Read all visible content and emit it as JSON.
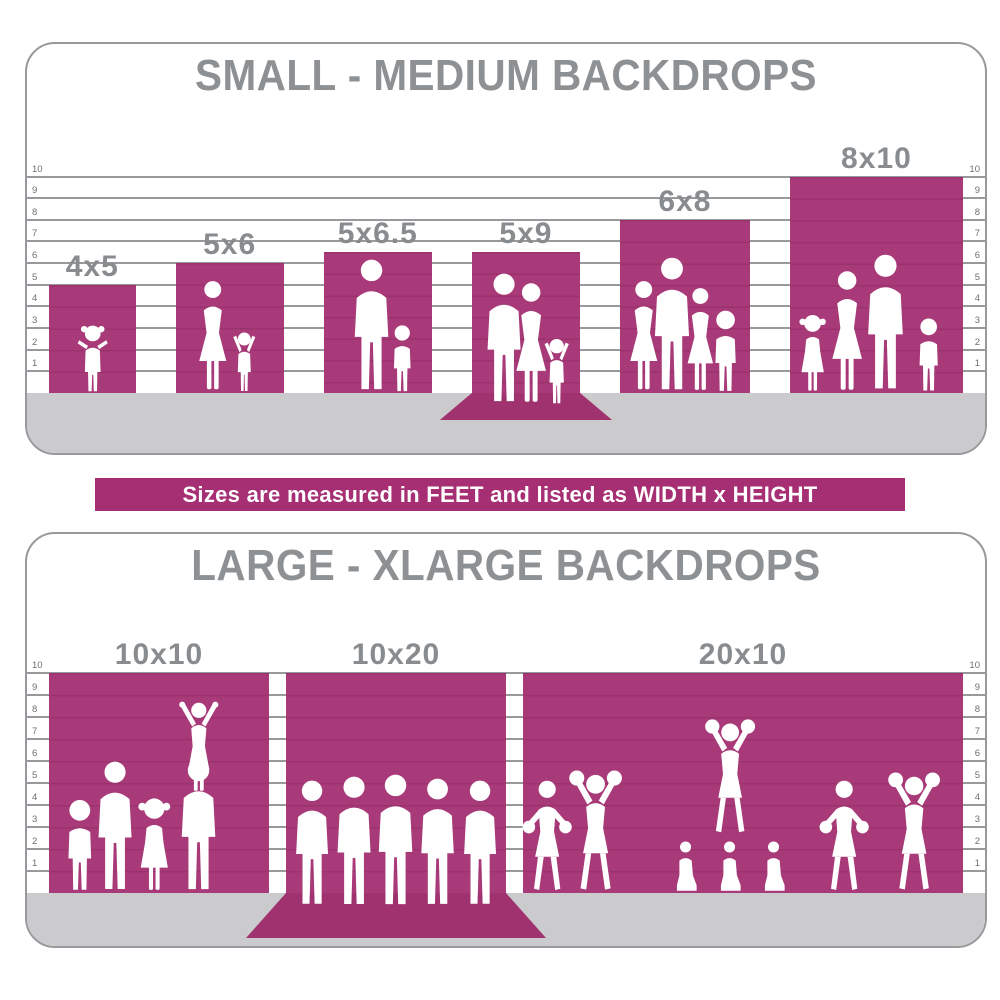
{
  "banner": {
    "text": "Sizes are measured in FEET and listed as WIDTH x HEIGHT"
  },
  "colors": {
    "backdrop": "#a93a79",
    "backdrop_sweep": "#a0336f",
    "banner_background": "#a62e73",
    "banner_text": "#ffffff",
    "floor": "#cbcbcd",
    "grid_line": "#97999c",
    "panel_border": "#97999c",
    "title_text": "#8e9194",
    "size_label_text": "#898c8f",
    "scale_number_text": "#6d6e71",
    "silhouette": "#ffffff"
  },
  "units_note": "feet",
  "panels": [
    {
      "id": "small-medium",
      "title": "SMALL - MEDIUM BACKDROPS",
      "scale_feet": [
        1,
        2,
        3,
        4,
        5,
        6,
        7,
        8,
        9,
        10
      ],
      "backdrops": [
        {
          "label": "4x5",
          "width_ft": 4,
          "height_ft": 5,
          "sweep": false,
          "figures": [
            {
              "type": "toddler",
              "height_ft": 3.3,
              "x": 0.5
            }
          ]
        },
        {
          "label": "5x6",
          "width_ft": 5,
          "height_ft": 6,
          "sweep": false,
          "figures": [
            {
              "type": "woman",
              "height_ft": 5.2,
              "x": 0.34
            },
            {
              "type": "child-arms-up",
              "height_ft": 3.0,
              "x": 0.64
            }
          ]
        },
        {
          "label": "5x6.5",
          "width_ft": 5,
          "height_ft": 6.5,
          "sweep": false,
          "figures": [
            {
              "type": "man",
              "height_ft": 6.2,
              "x": 0.44
            },
            {
              "type": "boy",
              "height_ft": 3.2,
              "x": 0.73
            }
          ]
        },
        {
          "label": "5x9",
          "width_ft": 5,
          "height_ft": 9,
          "sweep": true,
          "wall_ft": 6.5,
          "figures": [
            {
              "type": "man",
              "height_ft": 6.1,
              "x": 0.3
            },
            {
              "type": "woman",
              "height_ft": 5.7,
              "x": 0.55
            },
            {
              "type": "child-arms-up",
              "height_ft": 3.3,
              "x": 0.78
            }
          ]
        },
        {
          "label": "6x8",
          "width_ft": 6,
          "height_ft": 8,
          "sweep": false,
          "figures": [
            {
              "type": "woman",
              "height_ft": 5.2,
              "x": 0.18
            },
            {
              "type": "man",
              "height_ft": 6.3,
              "x": 0.4
            },
            {
              "type": "woman",
              "height_ft": 4.9,
              "x": 0.62
            },
            {
              "type": "boy",
              "height_ft": 3.9,
              "x": 0.81
            }
          ]
        },
        {
          "label": "8x10",
          "width_ft": 8,
          "height_ft": 10,
          "sweep": false,
          "figures": [
            {
              "type": "girl",
              "height_ft": 3.7,
              "x": 0.13
            },
            {
              "type": "woman",
              "height_ft": 5.7,
              "x": 0.33
            },
            {
              "type": "man",
              "height_ft": 6.4,
              "x": 0.55
            },
            {
              "type": "boy",
              "height_ft": 3.5,
              "x": 0.8
            }
          ]
        }
      ]
    },
    {
      "id": "large-xlarge",
      "title": "LARGE - XLARGE BACKDROPS",
      "scale_feet": [
        1,
        2,
        3,
        4,
        5,
        6,
        7,
        8,
        9,
        10
      ],
      "backdrops": [
        {
          "label": "10x10",
          "width_ft": 10,
          "height_ft": 10,
          "sweep": false,
          "figures": [
            {
              "type": "boy",
              "height_ft": 4.3,
              "x": 0.14
            },
            {
              "type": "man",
              "height_ft": 6.0,
              "x": 0.3
            },
            {
              "type": "girl",
              "height_ft": 4.4,
              "x": 0.48
            },
            {
              "type": "man",
              "height_ft": 6.1,
              "x": 0.68
            },
            {
              "type": "arms-v",
              "height_ft": 4.3,
              "x": 0.68,
              "lift_ft": 4.5
            }
          ]
        },
        {
          "label": "10x20",
          "width_ft": 10,
          "height_ft": 20,
          "sweep": true,
          "wall_ft": 10,
          "figures": [
            {
              "type": "man",
              "height_ft": 5.8,
              "x": 0.12
            },
            {
              "type": "man",
              "height_ft": 6.0,
              "x": 0.31
            },
            {
              "type": "man",
              "height_ft": 6.1,
              "x": 0.5
            },
            {
              "type": "man",
              "height_ft": 5.9,
              "x": 0.69
            },
            {
              "type": "man",
              "height_ft": 5.8,
              "x": 0.88
            }
          ]
        },
        {
          "label": "20x10",
          "width_ft": 20,
          "height_ft": 10,
          "sweep": false,
          "figures": [
            {
              "type": "cheer-out",
              "height_ft": 5.2,
              "x": 0.055
            },
            {
              "type": "cheer-up",
              "height_ft": 5.7,
              "x": 0.165
            },
            {
              "type": "kneel",
              "height_ft": 2.8,
              "x": 0.37
            },
            {
              "type": "kneel",
              "height_ft": 2.8,
              "x": 0.47
            },
            {
              "type": "kneel",
              "height_ft": 2.8,
              "x": 0.57
            },
            {
              "type": "cheer-up",
              "height_ft": 5.4,
              "x": 0.47,
              "lift_ft": 2.6
            },
            {
              "type": "cheer-out",
              "height_ft": 5.2,
              "x": 0.73
            },
            {
              "type": "cheer-up",
              "height_ft": 5.6,
              "x": 0.89
            }
          ]
        }
      ]
    }
  ]
}
